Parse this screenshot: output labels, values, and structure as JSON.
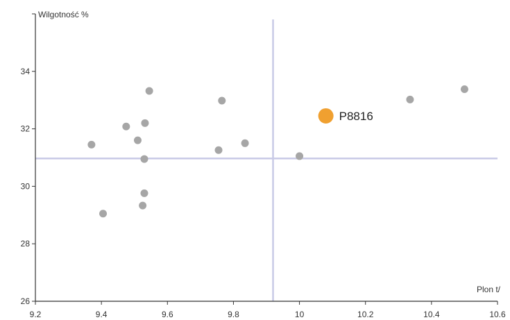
{
  "chart_data": {
    "type": "scatter",
    "title": "",
    "xlabel": "Plon t/",
    "ylabel": "Wilgotność %",
    "xlim": [
      9.2,
      10.6
    ],
    "ylim": [
      26,
      36
    ],
    "x_ticks": [
      "9.2",
      "9.4",
      "9.6",
      "9.8",
      "10",
      "10.2",
      "10.4",
      "10.6"
    ],
    "y_ticks": [
      "26",
      "28",
      "30",
      "32",
      "34"
    ],
    "grid": false,
    "reference_lines": {
      "x_mean": 9.92,
      "y_mean": 30.97
    },
    "points": [
      {
        "x": 9.37,
        "y": 31.45
      },
      {
        "x": 9.405,
        "y": 29.05
      },
      {
        "x": 9.475,
        "y": 32.08
      },
      {
        "x": 9.51,
        "y": 31.6
      },
      {
        "x": 9.525,
        "y": 29.33
      },
      {
        "x": 9.53,
        "y": 29.76
      },
      {
        "x": 9.53,
        "y": 30.95
      },
      {
        "x": 9.532,
        "y": 32.2
      },
      {
        "x": 9.545,
        "y": 33.32
      },
      {
        "x": 9.755,
        "y": 31.26
      },
      {
        "x": 9.765,
        "y": 32.98
      },
      {
        "x": 9.835,
        "y": 31.5
      },
      {
        "x": 10.0,
        "y": 31.05
      },
      {
        "x": 10.335,
        "y": 33.02
      },
      {
        "x": 10.5,
        "y": 33.38
      }
    ],
    "highlight": {
      "label": "P8816",
      "x": 10.08,
      "y": 32.45
    },
    "colors": {
      "point": "#a6a6a6",
      "highlight": "#f0a030",
      "reference_line": "#c8cae6",
      "axis": "#333333"
    }
  }
}
